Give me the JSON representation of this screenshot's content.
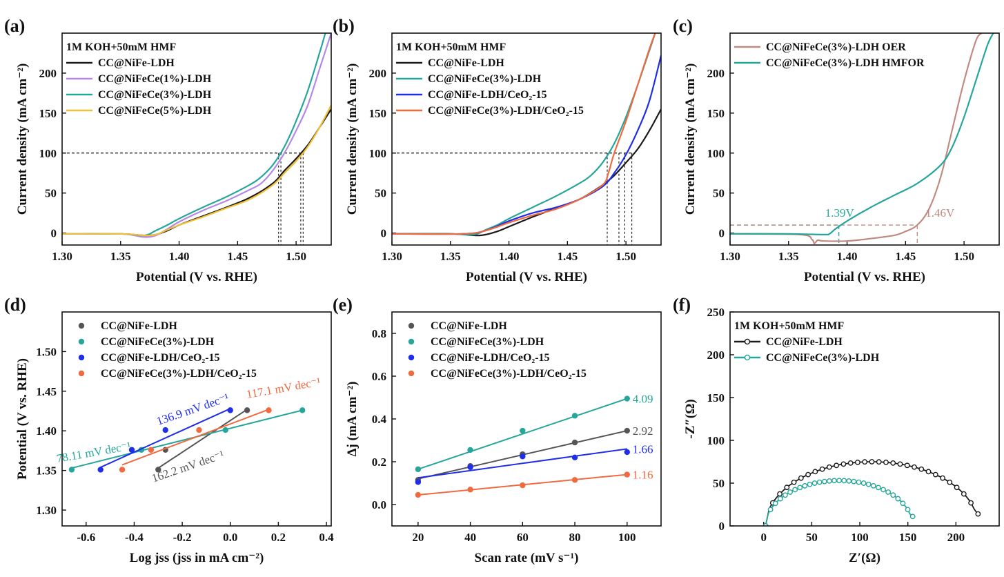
{
  "chart_data": [
    {
      "id": "a",
      "panel_label": "(a)",
      "type": "line",
      "xlabel": "Potential (V vs. RHE)",
      "ylabel": "Current density (mA cm⁻²)",
      "xlim": [
        1.3,
        1.53
      ],
      "ylim": [
        -15,
        250
      ],
      "xticks": [
        1.3,
        1.35,
        1.4,
        1.45,
        1.5
      ],
      "xtick_labels": [
        "1.30",
        "1.35",
        "1.40",
        "1.45",
        "1.50"
      ],
      "yticks": [
        0,
        50,
        100,
        150,
        200
      ],
      "ytick_labels": [
        "0",
        "50",
        "100",
        "150",
        "200"
      ],
      "legend_title": "1M KOH+50mM HMF",
      "legend_position": "top-left",
      "reference_lines": [
        {
          "y": 100,
          "x_from": 1.3,
          "x_to": 1.507
        }
      ],
      "drop_lines": [
        {
          "x": 1.485,
          "y": 100
        },
        {
          "x": 1.487,
          "y": 100
        },
        {
          "x": 1.504,
          "y": 100
        },
        {
          "x": 1.506,
          "y": 100
        }
      ],
      "series": [
        {
          "name": "CC@NiFe-LDH",
          "color": "#1a1a1a",
          "x": [
            1.3,
            1.35,
            1.37,
            1.38,
            1.39,
            1.4,
            1.42,
            1.44,
            1.46,
            1.48,
            1.49,
            1.5,
            1.51,
            1.52,
            1.53
          ],
          "y": [
            -1,
            -1,
            -3,
            -2,
            3,
            10,
            21,
            32,
            44,
            62,
            78,
            93,
            110,
            132,
            155
          ]
        },
        {
          "name": "CC@NiFeCe(1%)-LDH",
          "color": "#b388e8",
          "x": [
            1.3,
            1.35,
            1.37,
            1.38,
            1.39,
            1.4,
            1.42,
            1.44,
            1.46,
            1.47,
            1.48,
            1.49,
            1.5,
            1.51,
            1.52,
            1.53
          ],
          "y": [
            -1,
            -1,
            -5,
            -3,
            5,
            14,
            28,
            40,
            54,
            62,
            78,
            100,
            128,
            160,
            205,
            250
          ]
        },
        {
          "name": "CC@NiFeCe(3%)-LDH",
          "color": "#26a69a",
          "x": [
            1.3,
            1.35,
            1.37,
            1.38,
            1.39,
            1.4,
            1.42,
            1.44,
            1.46,
            1.47,
            1.48,
            1.49,
            1.5,
            1.51,
            1.52,
            1.525
          ],
          "y": [
            -1,
            -1,
            -3,
            3,
            10,
            18,
            32,
            45,
            60,
            70,
            85,
            108,
            140,
            178,
            225,
            250
          ]
        },
        {
          "name": "CC@NiFeCe(5%)-LDH",
          "color": "#f2c037",
          "x": [
            1.3,
            1.35,
            1.37,
            1.38,
            1.39,
            1.4,
            1.42,
            1.44,
            1.46,
            1.48,
            1.49,
            1.5,
            1.51,
            1.52,
            1.53
          ],
          "y": [
            -1,
            -1,
            -3,
            -2,
            4,
            10,
            20,
            31,
            42,
            60,
            75,
            90,
            108,
            132,
            160
          ]
        }
      ]
    },
    {
      "id": "b",
      "panel_label": "(b)",
      "type": "line",
      "xlabel": "Potential (V vs. RHE)",
      "ylabel": "Current density (mA cm⁻²)",
      "xlim": [
        1.3,
        1.53
      ],
      "ylim": [
        -15,
        250
      ],
      "xticks": [
        1.3,
        1.35,
        1.4,
        1.45,
        1.5
      ],
      "xtick_labels": [
        "1.30",
        "1.35",
        "1.40",
        "1.45",
        "1.50"
      ],
      "yticks": [
        0,
        50,
        100,
        150,
        200
      ],
      "ytick_labels": [
        "0",
        "50",
        "100",
        "150",
        "200"
      ],
      "legend_title": "1M KOH+50mM HMF",
      "legend_position": "top-left",
      "reference_lines": [
        {
          "y": 100,
          "x_from": 1.3,
          "x_to": 1.506
        }
      ],
      "drop_lines": [
        {
          "x": 1.484,
          "y": 100
        },
        {
          "x": 1.494,
          "y": 100
        },
        {
          "x": 1.499,
          "y": 100
        },
        {
          "x": 1.505,
          "y": 100
        }
      ],
      "series": [
        {
          "name": "CC@NiFe-LDH",
          "color": "#1a1a1a",
          "x": [
            1.3,
            1.35,
            1.375,
            1.39,
            1.4,
            1.42,
            1.44,
            1.46,
            1.48,
            1.49,
            1.5,
            1.51,
            1.52,
            1.53
          ],
          "y": [
            -1,
            -1,
            -3,
            2,
            8,
            20,
            31,
            42,
            60,
            72,
            88,
            105,
            128,
            155
          ]
        },
        {
          "name": "CC@NiFeCe(3%)-LDH",
          "color": "#26a69a",
          "x": [
            1.3,
            1.35,
            1.37,
            1.38,
            1.39,
            1.4,
            1.42,
            1.44,
            1.46,
            1.47,
            1.48,
            1.49,
            1.5,
            1.51,
            1.52,
            1.525
          ],
          "y": [
            -1,
            -1,
            -2,
            4,
            10,
            18,
            32,
            46,
            62,
            72,
            88,
            112,
            145,
            185,
            228,
            250
          ]
        },
        {
          "name": "CC@NiFe-LDH/CeO₂-15",
          "color": "#1f2ee8",
          "x": [
            1.3,
            1.36,
            1.38,
            1.4,
            1.42,
            1.44,
            1.46,
            1.48,
            1.49,
            1.5,
            1.51,
            1.52,
            1.53
          ],
          "y": [
            -1,
            -1,
            3,
            15,
            25,
            32,
            42,
            58,
            75,
            98,
            128,
            165,
            222
          ]
        },
        {
          "name": "CC@NiFeCe(3%)-LDH/CeO₂-15",
          "color": "#f06a3f",
          "x": [
            1.3,
            1.36,
            1.38,
            1.4,
            1.42,
            1.44,
            1.46,
            1.48,
            1.485,
            1.49,
            1.5,
            1.51,
            1.52,
            1.525
          ],
          "y": [
            -1,
            -1,
            3,
            13,
            22,
            30,
            42,
            60,
            75,
            100,
            140,
            185,
            230,
            250
          ]
        }
      ]
    },
    {
      "id": "c",
      "panel_label": "(c)",
      "type": "line",
      "xlabel": "Potential (V vs. RHE)",
      "ylabel": "Current density (mA cm⁻²)",
      "xlim": [
        1.3,
        1.53
      ],
      "ylim": [
        -15,
        250
      ],
      "xticks": [
        1.3,
        1.35,
        1.4,
        1.45,
        1.5
      ],
      "xtick_labels": [
        "1.30",
        "1.35",
        "1.40",
        "1.45",
        "1.50"
      ],
      "yticks": [
        0,
        50,
        100,
        150,
        200
      ],
      "ytick_labels": [
        "0",
        "50",
        "100",
        "150",
        "200"
      ],
      "legend_position": "top-left",
      "annotations": [
        {
          "text": "1.39V",
          "x": 1.393,
          "y": 10,
          "color": "#26a69a"
        },
        {
          "text": "1.46V",
          "x": 1.46,
          "y": 10,
          "color": "#c08a80"
        }
      ],
      "series": [
        {
          "name": "CC@NiFeCe(3%)-LDH OER",
          "color": "#c08a80",
          "x": [
            1.3,
            1.36,
            1.37,
            1.372,
            1.375,
            1.38,
            1.4,
            1.42,
            1.44,
            1.45,
            1.46,
            1.47,
            1.48,
            1.49,
            1.5,
            1.51,
            1.515
          ],
          "y": [
            -1,
            -2,
            -8,
            -13,
            -9,
            -10,
            -10,
            -7,
            -3,
            2,
            10,
            30,
            70,
            130,
            190,
            240,
            250
          ]
        },
        {
          "name": "CC@NiFeCe(3%)-LDH HMFOR",
          "color": "#26a69a",
          "x": [
            1.3,
            1.35,
            1.38,
            1.385,
            1.39,
            1.4,
            1.42,
            1.44,
            1.46,
            1.48,
            1.49,
            1.5,
            1.51,
            1.52,
            1.525
          ],
          "y": [
            -1,
            -1,
            -2,
            -1,
            5,
            15,
            32,
            47,
            62,
            85,
            108,
            145,
            190,
            235,
            250
          ]
        }
      ]
    },
    {
      "id": "d",
      "panel_label": "(d)",
      "type": "scatter",
      "xlabel": "Log jss (jss in mA cm⁻²)",
      "ylabel": "Potential (V vs. RHE)",
      "xlim": [
        -0.7,
        0.42
      ],
      "ylim": [
        1.28,
        1.55
      ],
      "xticks": [
        -0.6,
        -0.4,
        -0.2,
        0.0,
        0.2,
        0.4
      ],
      "xtick_labels": [
        "-0.6",
        "-0.4",
        "-0.2",
        "0.0",
        "0.2",
        "0.4"
      ],
      "yticks": [
        1.3,
        1.35,
        1.4,
        1.45,
        1.5
      ],
      "ytick_labels": [
        "1.30",
        "1.35",
        "1.40",
        "1.45",
        "1.50"
      ],
      "legend_position": "top-left",
      "series": [
        {
          "name": "CC@NiFe-LDH",
          "color": "#555555",
          "x": [
            -0.3,
            -0.27,
            0.07
          ],
          "y": [
            1.351,
            1.376,
            1.426
          ],
          "fit_x": [
            -0.31,
            0.07
          ],
          "fit_y": [
            1.351,
            1.427
          ],
          "slope_label": "162.2 mV dec⁻¹"
        },
        {
          "name": "CC@NiFeCe(3%)-LDH",
          "color": "#26a69a",
          "x": [
            -0.66,
            -0.37,
            -0.02,
            0.3
          ],
          "y": [
            1.351,
            1.376,
            1.401,
            1.426
          ],
          "fit_x": [
            -0.66,
            0.3
          ],
          "fit_y": [
            1.353,
            1.426
          ],
          "slope_label": "78.11 mV dec⁻¹"
        },
        {
          "name": "CC@NiFe-LDH/CeO₂-15",
          "color": "#1f2ee8",
          "x": [
            -0.54,
            -0.41,
            -0.27,
            0.0
          ],
          "y": [
            1.351,
            1.376,
            1.401,
            1.426
          ],
          "fit_x": [
            -0.54,
            0.0
          ],
          "fit_y": [
            1.354,
            1.428
          ],
          "slope_label": "136.9 mV dec⁻¹"
        },
        {
          "name": "CC@NiFeCe(3%)-LDH/CeO₂-15",
          "color": "#f06a3f",
          "x": [
            -0.45,
            -0.33,
            -0.13,
            0.16
          ],
          "y": [
            1.351,
            1.376,
            1.401,
            1.426
          ],
          "fit_x": [
            -0.45,
            0.16
          ],
          "fit_y": [
            1.357,
            1.427
          ],
          "slope_label": "117.1 mV dec⁻¹"
        }
      ]
    },
    {
      "id": "e",
      "panel_label": "(e)",
      "type": "scatter",
      "xlabel": "Scan rate (mV s⁻¹)",
      "ylabel": "Δj (mA cm⁻²)",
      "xlim": [
        10,
        113
      ],
      "ylim": [
        -0.1,
        0.9
      ],
      "xticks": [
        20,
        40,
        60,
        80,
        100
      ],
      "xtick_labels": [
        "20",
        "40",
        "60",
        "80",
        "100"
      ],
      "yticks": [
        0.0,
        0.2,
        0.4,
        0.6,
        0.8
      ],
      "ytick_labels": [
        "0.0",
        "0.2",
        "0.4",
        "0.6",
        "0.8"
      ],
      "legend_position": "top-left",
      "series": [
        {
          "name": "CC@NiFe-LDH",
          "color": "#555555",
          "x": [
            20,
            40,
            60,
            80,
            100
          ],
          "y": [
            0.115,
            0.18,
            0.235,
            0.29,
            0.345
          ],
          "fit_y": [
            0.12,
            0.345
          ],
          "slope_label": "2.92"
        },
        {
          "name": "CC@NiFeCe(3%)-LDH",
          "color": "#26a69a",
          "x": [
            20,
            40,
            60,
            80,
            100
          ],
          "y": [
            0.165,
            0.255,
            0.345,
            0.415,
            0.495
          ],
          "fit_y": [
            0.165,
            0.495
          ],
          "slope_label": "4.09"
        },
        {
          "name": "CC@NiFe-LDH/CeO₂-15",
          "color": "#1f2ee8",
          "x": [
            20,
            40,
            60,
            80,
            100
          ],
          "y": [
            0.105,
            0.175,
            0.225,
            0.22,
            0.245
          ],
          "fit_y": [
            0.125,
            0.26
          ],
          "slope_label": "1.66"
        },
        {
          "name": "CC@NiFeCe(3%)-LDH/CeO₂-15",
          "color": "#f06a3f",
          "x": [
            20,
            40,
            60,
            80,
            100
          ],
          "y": [
            0.045,
            0.07,
            0.09,
            0.115,
            0.14
          ],
          "fit_y": [
            0.045,
            0.14
          ],
          "slope_label": "1.16"
        }
      ]
    },
    {
      "id": "f",
      "panel_label": "(f)",
      "type": "scatter",
      "xlabel": "Z′(Ω)",
      "ylabel": "-Z″(Ω)",
      "xlim": [
        -35,
        245
      ],
      "ylim": [
        0,
        250
      ],
      "xticks": [
        0,
        50,
        100,
        150,
        200
      ],
      "xtick_labels": [
        "0",
        "50",
        "100",
        "150",
        "200"
      ],
      "yticks": [
        0,
        50,
        100,
        150,
        200,
        250
      ],
      "ytick_labels": [
        "0",
        "50",
        "100",
        "150",
        "200",
        "250"
      ],
      "legend_title": "1M KOH+50mM HMF",
      "legend_position": "top-left",
      "series": [
        {
          "name": "CC@NiFe-LDH",
          "color": "#1a1a1a",
          "shape": "semicircle",
          "x_start": 2,
          "x_end": 223,
          "peak": 75,
          "end_y": 14
        },
        {
          "name": "CC@NiFeCe(3%)-LDH",
          "color": "#26a69a",
          "shape": "semicircle",
          "x_start": 2,
          "x_end": 155,
          "peak": 53,
          "end_y": 11
        }
      ]
    }
  ]
}
